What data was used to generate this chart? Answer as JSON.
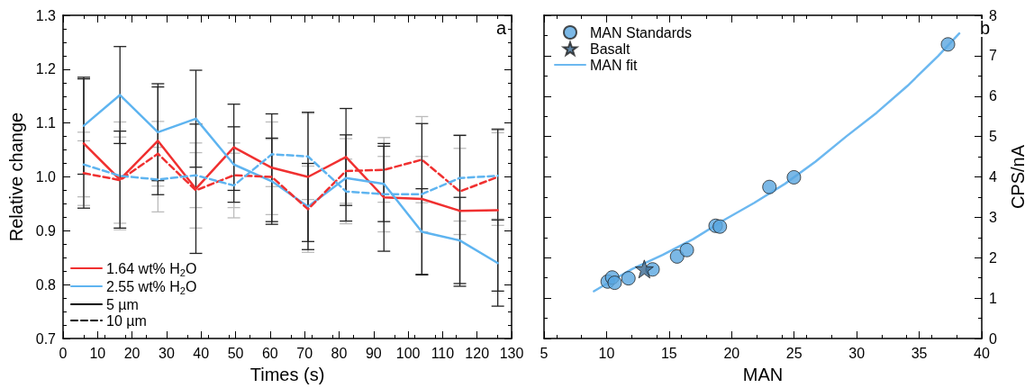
{
  "chart_data": [
    {
      "type": "line",
      "xlabel": "Times (s)",
      "ylabel": "Relative change",
      "annotations": [
        "a"
      ],
      "xlim": [
        0,
        130
      ],
      "xticks": [
        0,
        10,
        20,
        30,
        40,
        50,
        60,
        70,
        80,
        90,
        100,
        110,
        120,
        130
      ],
      "ylim": [
        0.7,
        1.3
      ],
      "yticks": [
        0.7,
        0.8,
        0.9,
        {
          "value": 1,
          "label": "1.0"
        },
        1.1,
        1.2,
        1.3
      ],
      "legend": "bottom left",
      "marker": "none",
      "x": [
        6,
        16.5,
        27.5,
        38.5,
        49.5,
        60.5,
        71,
        82,
        93,
        104,
        115,
        126
      ],
      "series": [
        {
          "name": "1.64 wt% H$_{2}$O",
          "color": "#f03030",
          "line_style": "solid",
          "values": [
            1.062,
            0.995,
            1.067,
            0.978,
            1.055,
            1.017,
            1.0,
            1.037,
            0.962,
            0.959,
            0.937,
            0.938
          ],
          "errors": [
            0.12,
            0.09,
            0.1,
            0.12,
            0.08,
            0.1,
            0.12,
            0.09,
            0.1,
            0.14,
            0.14,
            0.15
          ]
        },
        {
          "name": "2.55 wt% H$_{2}$O",
          "color": "#5eb4f0",
          "line_style": "solid",
          "values": [
            1.095,
            1.152,
            1.083,
            1.108,
            1.023,
            0.992,
            0.945,
            0.998,
            0.987,
            0.898,
            0.882,
            0.84
          ],
          "errors": [
            0.09,
            0.09,
            0.09,
            0.09,
            0.07,
            0.08,
            0.08,
            0.08,
            0.07,
            0.08,
            0.08,
            0.08
          ]
        },
        {
          "color": "#f03030",
          "line_style": "dashed",
          "values": [
            1.007,
            0.994,
            1.043,
            0.975,
            1.003,
            1.0,
            0.94,
            1.011,
            1.013,
            1.032,
            0.973,
            1.0
          ],
          "errors": [
            0.06,
            0.08,
            0.06,
            0.07,
            0.06,
            0.07,
            0.08,
            0.06,
            0.06,
            0.08,
            0.08,
            0.09
          ]
        },
        {
          "color": "#5eb4f0",
          "line_style": "dashed",
          "values": [
            1.023,
            1.002,
            0.995,
            1.003,
            0.984,
            1.042,
            1.038,
            0.973,
            0.968,
            0.968,
            0.998,
            1.002
          ],
          "errors": [
            0.06,
            0.1,
            0.06,
            0.06,
            0.06,
            0.06,
            0.08,
            0.06,
            0.07,
            0.07,
            0.08,
            0.08
          ]
        },
        {
          "name": "5 µm",
          "color": "#000000",
          "line_style": "solid",
          "values": [
            null,
            null,
            null,
            null,
            null,
            null,
            null,
            null,
            null,
            null,
            null,
            null
          ]
        },
        {
          "name": "10 µm",
          "color": "#000000",
          "line_style": "dashed",
          "values": [
            null,
            null,
            null,
            null,
            null,
            null,
            null,
            null,
            null,
            null,
            null,
            null
          ]
        }
      ]
    },
    {
      "type": "scatter",
      "xlabel": "MAN",
      "y2label": "CPS/nA",
      "annotations": [
        "b"
      ],
      "xlim": [
        5,
        40
      ],
      "xticks": [
        5,
        10,
        15,
        20,
        25,
        30,
        35,
        40
      ],
      "y2lim": [
        0,
        8
      ],
      "y2ticks": [
        0,
        1,
        2,
        3,
        4,
        5,
        6,
        7,
        8
      ],
      "legend": "top left",
      "series": [
        {
          "name": "MAN Standards",
          "marker": "circle",
          "axis": "y2",
          "color": "#5aa6e0",
          "x": [
            10.09,
            10.45,
            10.65,
            11.75,
            13.68,
            15.64,
            16.42,
            18.72,
            19.06,
            23.02,
            24.98,
            37.3
          ],
          "values": [
            1.41,
            1.51,
            1.38,
            1.49,
            1.71,
            2.03,
            2.19,
            2.79,
            2.77,
            3.75,
            3.99,
            7.28
          ]
        },
        {
          "name": "Basalt",
          "marker": "star",
          "axis": "y2",
          "color": "#3a6890",
          "x": [
            13.02
          ],
          "values": [
            1.72
          ]
        },
        {
          "name": "MAN fit",
          "type": "line",
          "marker": "none",
          "axis": "y2",
          "color": "#6cb8f0",
          "x": [
            8.99,
            10.09,
            12.04,
            14.49,
            16.93,
            19.38,
            21.82,
            24.27,
            26.71,
            29.16,
            31.6,
            34.05,
            36.5,
            38.2
          ],
          "values": [
            1.17,
            1.37,
            1.72,
            2.07,
            2.46,
            2.93,
            3.36,
            3.83,
            4.38,
            5.0,
            5.59,
            6.25,
            6.99,
            7.55
          ]
        }
      ]
    }
  ]
}
